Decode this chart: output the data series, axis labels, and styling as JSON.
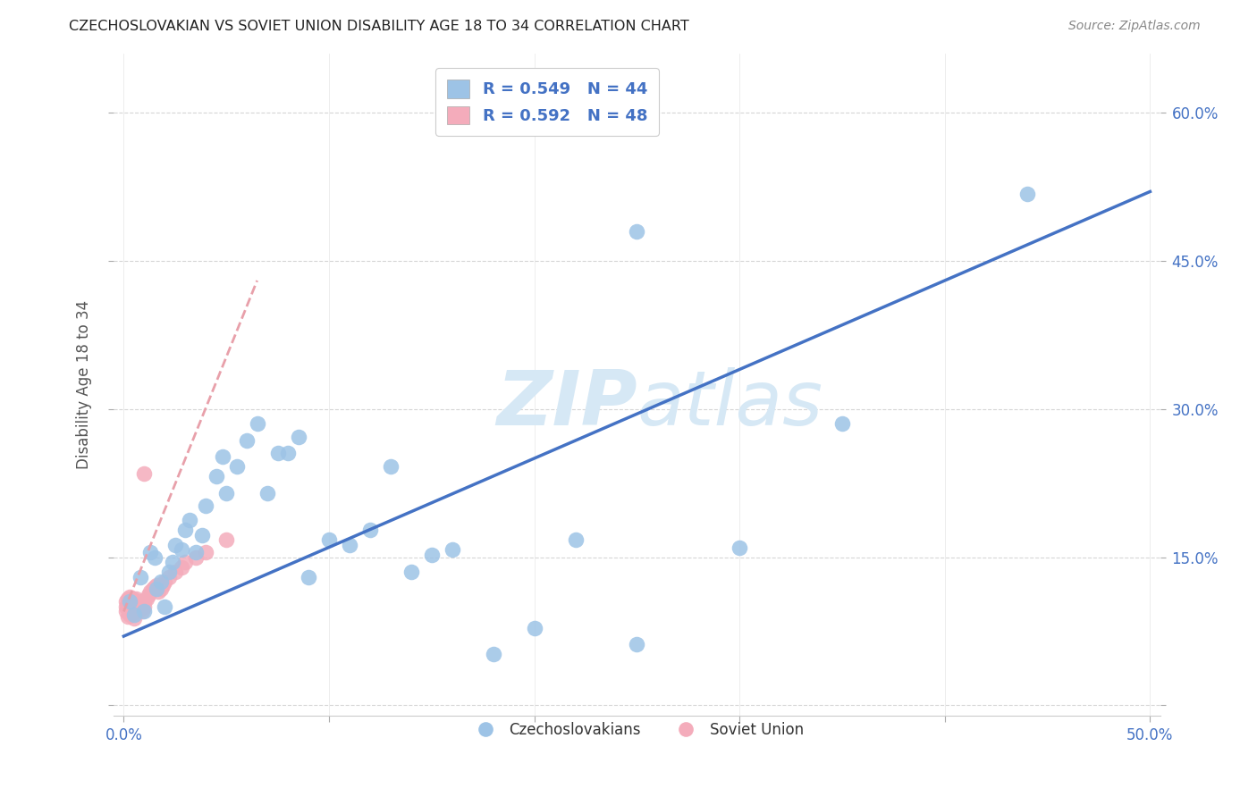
{
  "title": "CZECHOSLOVAKIAN VS SOVIET UNION DISABILITY AGE 18 TO 34 CORRELATION CHART",
  "source": "Source: ZipAtlas.com",
  "ylabel": "Disability Age 18 to 34",
  "xlim": [
    -0.005,
    0.505
  ],
  "ylim": [
    -0.01,
    0.66
  ],
  "xticks": [
    0.0,
    0.1,
    0.2,
    0.3,
    0.4,
    0.5
  ],
  "yticks": [
    0.0,
    0.15,
    0.3,
    0.45,
    0.6
  ],
  "ytick_labels_right": [
    "",
    "15.0%",
    "30.0%",
    "45.0%",
    "60.0%"
  ],
  "xtick_labels": [
    "0.0%",
    "",
    "",
    "",
    "",
    "50.0%"
  ],
  "blue_line_color": "#4472C4",
  "pink_line_color": "#E8A0AA",
  "blue_scatter_color": "#9DC3E6",
  "pink_scatter_color": "#F4ACBB",
  "watermark": "ZIPatlas",
  "watermark_color": "#D6E8F5",
  "legend_label_blue": "R = 0.549   N = 44",
  "legend_label_pink": "R = 0.592   N = 48",
  "legend_bottom_blue": "Czechoslovakians",
  "legend_bottom_pink": "Soviet Union",
  "legend_text_color": "#4472C4",
  "cz_x": [
    0.003,
    0.005,
    0.008,
    0.01,
    0.013,
    0.015,
    0.016,
    0.018,
    0.02,
    0.022,
    0.024,
    0.025,
    0.028,
    0.03,
    0.032,
    0.035,
    0.038,
    0.04,
    0.045,
    0.048,
    0.05,
    0.055,
    0.06,
    0.065,
    0.07,
    0.075,
    0.08,
    0.085,
    0.09,
    0.1,
    0.11,
    0.12,
    0.13,
    0.14,
    0.15,
    0.16,
    0.18,
    0.2,
    0.22,
    0.25,
    0.3,
    0.35,
    0.44,
    0.25
  ],
  "cz_y": [
    0.105,
    0.092,
    0.13,
    0.095,
    0.155,
    0.15,
    0.118,
    0.125,
    0.1,
    0.135,
    0.145,
    0.162,
    0.158,
    0.178,
    0.188,
    0.155,
    0.172,
    0.202,
    0.232,
    0.252,
    0.215,
    0.242,
    0.268,
    0.285,
    0.215,
    0.255,
    0.255,
    0.272,
    0.13,
    0.168,
    0.162,
    0.178,
    0.242,
    0.135,
    0.152,
    0.158,
    0.052,
    0.078,
    0.168,
    0.062,
    0.16,
    0.285,
    0.518,
    0.48
  ],
  "su_x": [
    0.001,
    0.001,
    0.001,
    0.002,
    0.002,
    0.002,
    0.002,
    0.003,
    0.003,
    0.003,
    0.003,
    0.004,
    0.004,
    0.004,
    0.005,
    0.005,
    0.005,
    0.005,
    0.006,
    0.006,
    0.006,
    0.007,
    0.007,
    0.007,
    0.008,
    0.008,
    0.009,
    0.009,
    0.01,
    0.01,
    0.011,
    0.012,
    0.013,
    0.014,
    0.015,
    0.016,
    0.017,
    0.018,
    0.019,
    0.02,
    0.022,
    0.025,
    0.028,
    0.03,
    0.035,
    0.04,
    0.05,
    0.01
  ],
  "su_y": [
    0.095,
    0.105,
    0.1,
    0.09,
    0.098,
    0.103,
    0.108,
    0.092,
    0.1,
    0.105,
    0.11,
    0.095,
    0.102,
    0.108,
    0.088,
    0.095,
    0.1,
    0.106,
    0.098,
    0.102,
    0.108,
    0.095,
    0.1,
    0.105,
    0.098,
    0.103,
    0.095,
    0.1,
    0.1,
    0.105,
    0.108,
    0.112,
    0.115,
    0.118,
    0.12,
    0.122,
    0.115,
    0.118,
    0.122,
    0.125,
    0.13,
    0.135,
    0.14,
    0.145,
    0.15,
    0.155,
    0.168,
    0.235
  ],
  "blue_line_x": [
    0.0,
    0.5
  ],
  "blue_line_y": [
    0.07,
    0.52
  ],
  "pink_line_x": [
    0.0,
    0.065
  ],
  "pink_line_y": [
    0.095,
    0.43
  ]
}
